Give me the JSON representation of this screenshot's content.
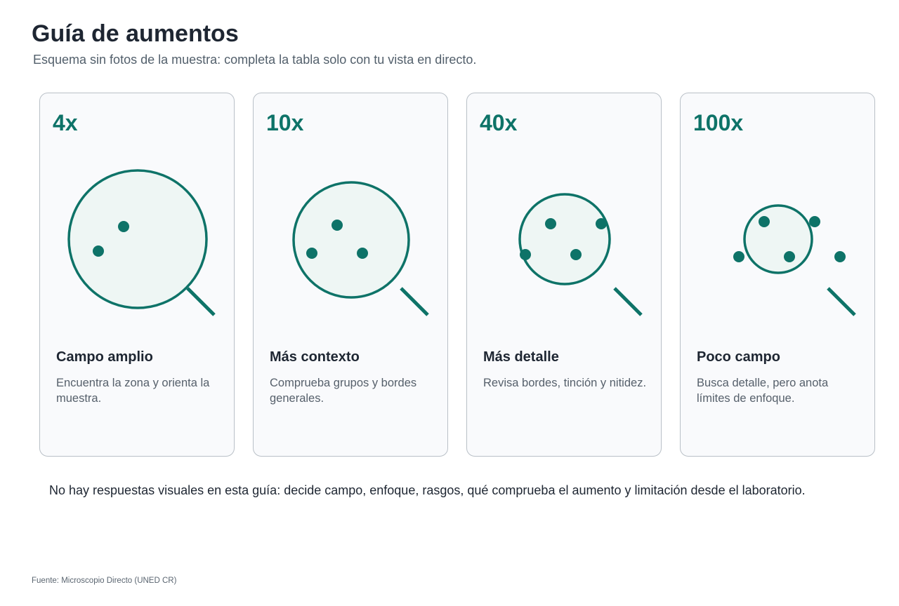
{
  "title": "Guía de aumentos",
  "subtitle": "Esquema sin fotos de la muestra: completa la tabla solo con tu vista en directo.",
  "colors": {
    "accent": "#0e7368",
    "lens_fill": "#eef6f4",
    "card_border": "#b9c0c7",
    "card_bg": "#f9fafc"
  },
  "cards": [
    {
      "magnification": "4x",
      "heading": "Campo amplio",
      "description": "Encuentra la zona y orienta la muestra.",
      "icon": "magnifier-icon"
    },
    {
      "magnification": "10x",
      "heading": "Más contexto",
      "description": "Comprueba grupos y bordes generales.",
      "icon": "magnifier-icon"
    },
    {
      "magnification": "40x",
      "heading": "Más detalle",
      "description": "Revisa bordes, tinción y nitidez.",
      "icon": "magnifier-icon"
    },
    {
      "magnification": "100x",
      "heading": "Poco campo",
      "description": "Busca detalle, pero anota límites de enfoque.",
      "icon": "magnifier-icon"
    }
  ],
  "note": "No hay respuestas visuales en esta guía: decide campo, enfoque, rasgos, qué comprueba el aumento y limitación desde el laboratorio.",
  "source": "Fuente: Microscopio Directo (UNED CR)"
}
